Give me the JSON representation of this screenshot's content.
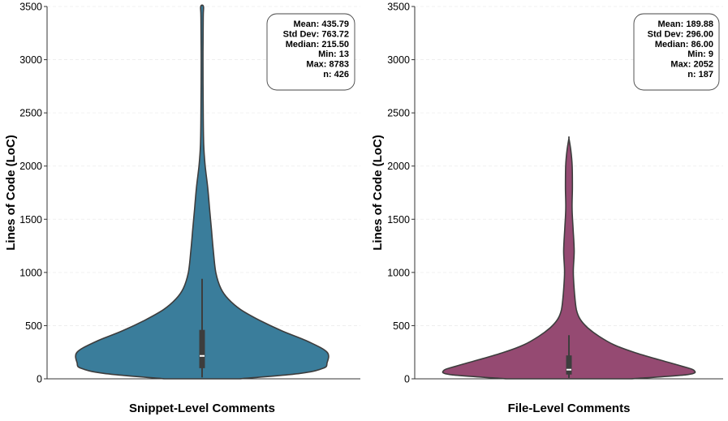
{
  "chart_data": [
    {
      "type": "violin",
      "xlabel": "Snippet-Level Comments",
      "ylabel": "Lines of Code (LoC)",
      "ylim": [
        0,
        3500
      ],
      "yticks": [
        "0",
        "500",
        "1000",
        "1500",
        "2000",
        "2500",
        "3000",
        "3500"
      ],
      "grid": "horizontal, faint",
      "color": "#3a7d9b",
      "stats": [
        "Mean: 435.79",
        "Std Dev: 763.72",
        "Median: 215.50",
        "Min: 13",
        "Max: 8783",
        "n: 426"
      ],
      "stats_position": "top-right",
      "box": {
        "q1": 100,
        "median": 215.5,
        "q3": 460,
        "whisker_low": 13,
        "whisker_high": 940
      },
      "density": [
        {
          "y": 0,
          "width": 0.3
        },
        {
          "y": 50,
          "width": 0.78
        },
        {
          "y": 100,
          "width": 0.97
        },
        {
          "y": 150,
          "width": 1.0
        },
        {
          "y": 250,
          "width": 1.0
        },
        {
          "y": 350,
          "width": 0.85
        },
        {
          "y": 450,
          "width": 0.64
        },
        {
          "y": 550,
          "width": 0.46
        },
        {
          "y": 650,
          "width": 0.31
        },
        {
          "y": 750,
          "width": 0.21
        },
        {
          "y": 850,
          "width": 0.15
        },
        {
          "y": 1000,
          "width": 0.11
        },
        {
          "y": 1200,
          "width": 0.09
        },
        {
          "y": 1400,
          "width": 0.075
        },
        {
          "y": 1600,
          "width": 0.06
        },
        {
          "y": 1800,
          "width": 0.045
        },
        {
          "y": 2000,
          "width": 0.025
        },
        {
          "y": 2200,
          "width": 0.013
        },
        {
          "y": 2500,
          "width": 0.009
        },
        {
          "y": 3000,
          "width": 0.007
        },
        {
          "y": 3400,
          "width": 0.009
        },
        {
          "y": 3500,
          "width": 0.011
        }
      ]
    },
    {
      "type": "violin",
      "xlabel": "File-Level Comments",
      "ylabel": "Lines of Code (LoC)",
      "ylim": [
        0,
        3500
      ],
      "yticks": [
        "0",
        "500",
        "1000",
        "1500",
        "2000",
        "2500",
        "3000",
        "3500"
      ],
      "grid": "horizontal, faint",
      "color": "#954a72",
      "stats": [
        "Mean: 189.88",
        "Std Dev: 296.00",
        "Median: 86.00",
        "Min: 9",
        "Max: 2052",
        "n: 187"
      ],
      "stats_position": "top-right",
      "box": {
        "q1": 40,
        "median": 86,
        "q3": 220,
        "whisker_low": 9,
        "whisker_high": 410
      },
      "density": [
        {
          "y": 0,
          "width": 0.5
        },
        {
          "y": 40,
          "width": 0.95
        },
        {
          "y": 80,
          "width": 1.0
        },
        {
          "y": 120,
          "width": 0.9
        },
        {
          "y": 180,
          "width": 0.72
        },
        {
          "y": 250,
          "width": 0.52
        },
        {
          "y": 320,
          "width": 0.36
        },
        {
          "y": 400,
          "width": 0.24
        },
        {
          "y": 480,
          "width": 0.15
        },
        {
          "y": 560,
          "width": 0.09
        },
        {
          "y": 650,
          "width": 0.06
        },
        {
          "y": 800,
          "width": 0.045
        },
        {
          "y": 1000,
          "width": 0.035
        },
        {
          "y": 1200,
          "width": 0.042
        },
        {
          "y": 1400,
          "width": 0.034
        },
        {
          "y": 1600,
          "width": 0.025
        },
        {
          "y": 1800,
          "width": 0.028
        },
        {
          "y": 2000,
          "width": 0.026
        },
        {
          "y": 2150,
          "width": 0.015
        },
        {
          "y": 2260,
          "width": 0.0
        }
      ]
    }
  ]
}
